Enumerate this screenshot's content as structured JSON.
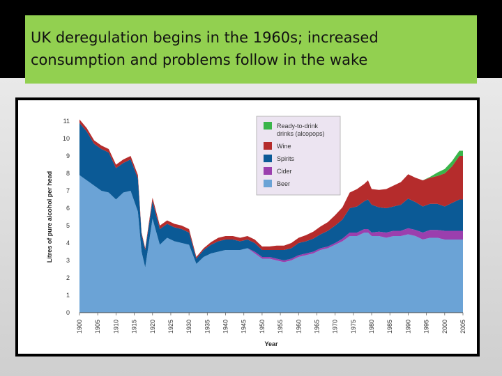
{
  "title": {
    "line1": "UK deregulation begins in the 1960s; increased",
    "line2": "consumption and problems follow in the wake"
  },
  "chart_data": {
    "type": "area",
    "stacked": true,
    "xlabel": "Year",
    "ylabel": "Litres of pure alcohol per head",
    "xlim": [
      1900,
      2005
    ],
    "ylim": [
      0,
      11
    ],
    "yticks": [
      0,
      1,
      2,
      3,
      4,
      5,
      6,
      7,
      8,
      9,
      10,
      11
    ],
    "xticks": [
      1900,
      1905,
      1910,
      1915,
      1920,
      1925,
      1930,
      1935,
      1940,
      1945,
      1950,
      1955,
      1960,
      1965,
      1970,
      1975,
      1980,
      1985,
      1990,
      1995,
      2000,
      2005
    ],
    "legend_position": "top-right",
    "x": [
      1900,
      1902,
      1904,
      1906,
      1908,
      1910,
      1912,
      1914,
      1916,
      1917,
      1918,
      1920,
      1922,
      1924,
      1926,
      1928,
      1930,
      1932,
      1934,
      1936,
      1938,
      1940,
      1942,
      1944,
      1946,
      1948,
      1950,
      1952,
      1954,
      1956,
      1958,
      1960,
      1962,
      1964,
      1966,
      1968,
      1970,
      1972,
      1974,
      1976,
      1978,
      1979,
      1980,
      1982,
      1984,
      1986,
      1988,
      1990,
      1992,
      1994,
      1996,
      1998,
      2000,
      2002,
      2004,
      2005
    ],
    "series": [
      {
        "name": "Beer",
        "color": "#6ba3d6",
        "values": [
          7.9,
          7.6,
          7.3,
          7.0,
          6.9,
          6.5,
          6.9,
          7.0,
          5.8,
          3.5,
          2.6,
          5.4,
          3.9,
          4.3,
          4.1,
          4.0,
          3.9,
          2.8,
          3.2,
          3.4,
          3.5,
          3.6,
          3.6,
          3.6,
          3.7,
          3.4,
          3.1,
          3.1,
          3.0,
          2.9,
          3.0,
          3.2,
          3.3,
          3.4,
          3.6,
          3.7,
          3.9,
          4.1,
          4.4,
          4.4,
          4.6,
          4.6,
          4.4,
          4.4,
          4.3,
          4.4,
          4.4,
          4.5,
          4.4,
          4.2,
          4.3,
          4.3,
          4.2,
          4.2,
          4.2,
          4.2
        ]
      },
      {
        "name": "Cider",
        "color": "#9b3fae",
        "values": [
          0,
          0,
          0,
          0,
          0,
          0,
          0,
          0,
          0,
          0,
          0,
          0,
          0,
          0,
          0,
          0,
          0,
          0,
          0,
          0,
          0,
          0,
          0,
          0,
          0,
          0.1,
          0.1,
          0.1,
          0.1,
          0.1,
          0.1,
          0.1,
          0.1,
          0.1,
          0.1,
          0.1,
          0.1,
          0.15,
          0.2,
          0.2,
          0.2,
          0.2,
          0.2,
          0.25,
          0.3,
          0.3,
          0.3,
          0.35,
          0.35,
          0.4,
          0.45,
          0.45,
          0.5,
          0.5,
          0.5,
          0.5
        ]
      },
      {
        "name": "Spirits",
        "color": "#0b5a96",
        "values": [
          3.0,
          2.8,
          2.4,
          2.4,
          2.3,
          1.8,
          1.7,
          1.8,
          1.9,
          1.0,
          1.0,
          1.0,
          0.9,
          0.8,
          0.8,
          0.8,
          0.7,
          0.3,
          0.4,
          0.5,
          0.6,
          0.6,
          0.6,
          0.5,
          0.5,
          0.5,
          0.4,
          0.4,
          0.5,
          0.6,
          0.6,
          0.7,
          0.7,
          0.75,
          0.8,
          0.9,
          1.0,
          1.1,
          1.4,
          1.5,
          1.6,
          1.7,
          1.6,
          1.4,
          1.4,
          1.4,
          1.5,
          1.7,
          1.6,
          1.5,
          1.5,
          1.5,
          1.4,
          1.6,
          1.8,
          1.8
        ]
      },
      {
        "name": "Wine",
        "color": "#b52c2c",
        "values": [
          0.2,
          0.2,
          0.2,
          0.2,
          0.2,
          0.2,
          0.2,
          0.2,
          0.2,
          0.1,
          0.1,
          0.2,
          0.2,
          0.2,
          0.2,
          0.2,
          0.2,
          0.1,
          0.1,
          0.15,
          0.2,
          0.2,
          0.2,
          0.2,
          0.2,
          0.2,
          0.2,
          0.2,
          0.25,
          0.25,
          0.3,
          0.3,
          0.35,
          0.4,
          0.45,
          0.5,
          0.6,
          0.7,
          0.9,
          1.0,
          1.0,
          1.1,
          0.9,
          1.0,
          1.1,
          1.2,
          1.3,
          1.4,
          1.4,
          1.5,
          1.5,
          1.6,
          1.9,
          2.1,
          2.5,
          2.5
        ]
      },
      {
        "name": "Ready-to-drink drinks (alcopops)",
        "legend_lines": [
          "Ready-to-drink",
          "drinks (alcopops)"
        ],
        "color": "#3ab54a",
        "values": [
          0,
          0,
          0,
          0,
          0,
          0,
          0,
          0,
          0,
          0,
          0,
          0,
          0,
          0,
          0,
          0,
          0,
          0,
          0,
          0,
          0,
          0,
          0,
          0,
          0,
          0,
          0,
          0,
          0,
          0,
          0,
          0,
          0,
          0,
          0,
          0,
          0,
          0,
          0,
          0,
          0,
          0,
          0,
          0,
          0,
          0,
          0,
          0,
          0,
          0,
          0.05,
          0.2,
          0.25,
          0.3,
          0.3,
          0.3
        ]
      }
    ],
    "legend_order": [
      "Ready-to-drink drinks (alcopops)",
      "Wine",
      "Spirits",
      "Cider",
      "Beer"
    ]
  }
}
